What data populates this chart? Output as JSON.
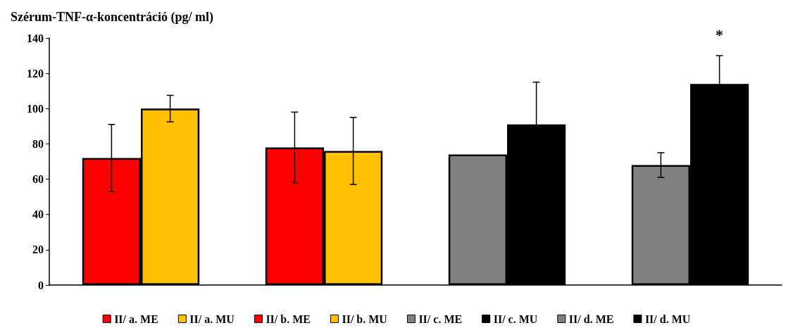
{
  "chart_data": {
    "type": "bar",
    "title": "Szérum-TNF-α-koncentráció (pg/ ml)",
    "categories": [
      null,
      null,
      null,
      null
    ],
    "series": [
      {
        "name": "II/ a. ME",
        "color": "#ff0000",
        "values": [
          72,
          null,
          null,
          null
        ],
        "errors": [
          19,
          null,
          null,
          null
        ]
      },
      {
        "name": "II/ a. MU",
        "color": "#ffc000",
        "values": [
          100,
          null,
          null,
          null
        ],
        "errors": [
          7.5,
          null,
          null,
          null
        ]
      },
      {
        "name": "II/ b. ME",
        "color": "#ff0000",
        "values": [
          null,
          78,
          null,
          null
        ],
        "errors": [
          null,
          20,
          null,
          null
        ]
      },
      {
        "name": "II/ b. MU",
        "color": "#ffc000",
        "values": [
          null,
          76,
          null,
          null
        ],
        "errors": [
          null,
          19,
          null,
          null
        ]
      },
      {
        "name": "II/ c. ME",
        "color": "#808080",
        "values": [
          null,
          null,
          74,
          null
        ],
        "errors": [
          null,
          null,
          null,
          null
        ]
      },
      {
        "name": "II/ c. MU",
        "color": "#000000",
        "values": [
          null,
          null,
          91,
          null
        ],
        "errors": [
          null,
          null,
          24,
          null
        ]
      },
      {
        "name": "II/ d. ME",
        "color": "#808080",
        "values": [
          null,
          null,
          null,
          68
        ],
        "errors": [
          null,
          null,
          null,
          7
        ]
      },
      {
        "name": "II/ d. MU",
        "color": "#000000",
        "values": [
          null,
          null,
          null,
          114
        ],
        "errors": [
          null,
          null,
          null,
          16
        ]
      }
    ],
    "annotations": [
      "*"
    ],
    "ylim": [
      0,
      140
    ],
    "yticks": [
      0,
      20,
      40,
      60,
      80,
      100,
      120,
      140
    ],
    "grid": false,
    "legend": "bottom"
  }
}
